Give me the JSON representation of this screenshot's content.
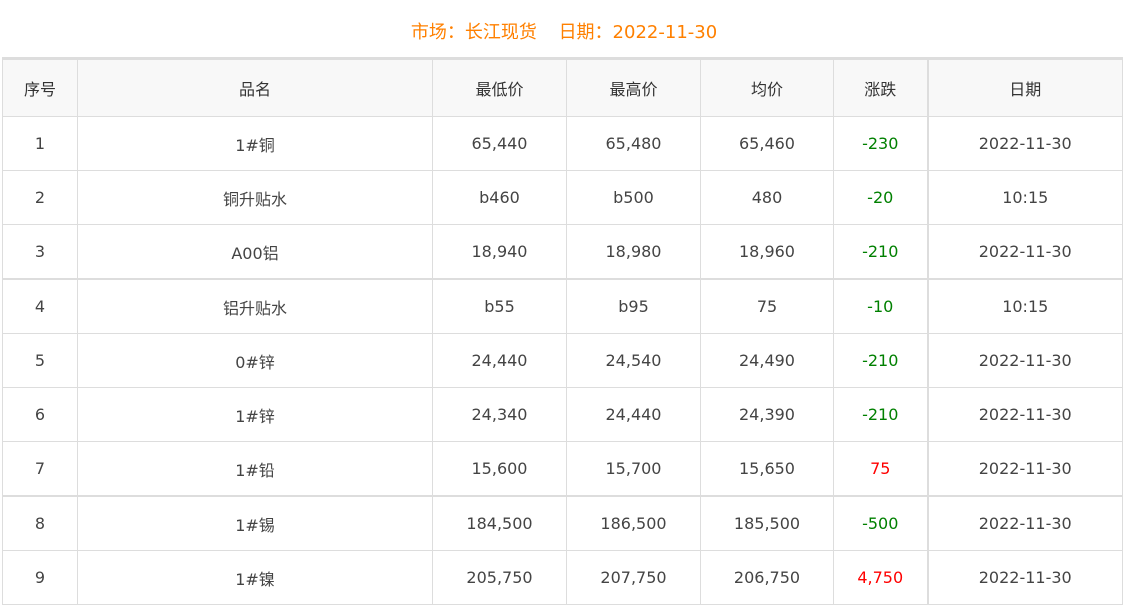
{
  "header": {
    "market": "市场：长江现货",
    "date": "日期：2022-11-30"
  },
  "columns": [
    "序号",
    "品名",
    "最低价",
    "最高价",
    "均价",
    "涨跌",
    "日期"
  ],
  "colors": {
    "title": "#ff8000",
    "down": "#008000",
    "up": "#ff0000"
  },
  "rows": [
    {
      "no": "1",
      "name": "1#铜",
      "low": "65,440",
      "high": "65,480",
      "avg": "65,460",
      "change": "-230",
      "dir": "down",
      "date": "2022-11-30"
    },
    {
      "no": "2",
      "name": "铜升贴水",
      "low": "b460",
      "high": "b500",
      "avg": "480",
      "change": "-20",
      "dir": "down",
      "date": "10:15"
    },
    {
      "no": "3",
      "name": "A00铝",
      "low": "18,940",
      "high": "18,980",
      "avg": "18,960",
      "change": "-210",
      "dir": "down",
      "date": "2022-11-30"
    },
    {
      "no": "4",
      "name": "铝升贴水",
      "low": "b55",
      "high": "b95",
      "avg": "75",
      "change": "-10",
      "dir": "down",
      "date": "10:15"
    },
    {
      "no": "5",
      "name": "0#锌",
      "low": "24,440",
      "high": "24,540",
      "avg": "24,490",
      "change": "-210",
      "dir": "down",
      "date": "2022-11-30"
    },
    {
      "no": "6",
      "name": "1#锌",
      "low": "24,340",
      "high": "24,440",
      "avg": "24,390",
      "change": "-210",
      "dir": "down",
      "date": "2022-11-30"
    },
    {
      "no": "7",
      "name": "1#铅",
      "low": "15,600",
      "high": "15,700",
      "avg": "15,650",
      "change": "75",
      "dir": "up",
      "date": "2022-11-30"
    },
    {
      "no": "8",
      "name": "1#锡",
      "low": "184,500",
      "high": "186,500",
      "avg": "185,500",
      "change": "-500",
      "dir": "down",
      "date": "2022-11-30"
    },
    {
      "no": "9",
      "name": "1#镍",
      "low": "205,750",
      "high": "207,750",
      "avg": "206,750",
      "change": "4,750",
      "dir": "up",
      "date": "2022-11-30"
    }
  ]
}
